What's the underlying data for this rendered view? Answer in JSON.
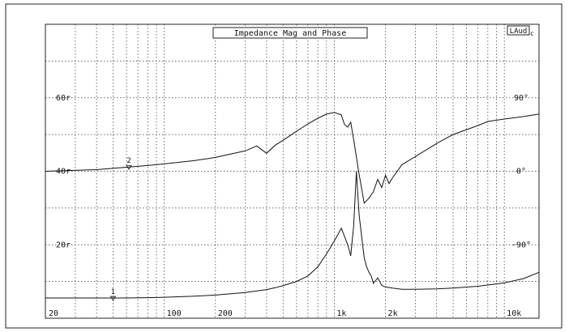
{
  "chart_data": {
    "type": "line",
    "title": "Impedance Mag and Phase",
    "brand": "LAud",
    "brand_suffix": "c",
    "xscale": "log",
    "xlim": [
      20,
      16000
    ],
    "x_tick_labels": [
      {
        "value": 20,
        "label": "20"
      },
      {
        "value": 100,
        "label": "100"
      },
      {
        "value": 200,
        "label": "200"
      },
      {
        "value": 1000,
        "label": "1k"
      },
      {
        "value": 2000,
        "label": "2k"
      },
      {
        "value": 10000,
        "label": "10k"
      }
    ],
    "y_left": {
      "unit": "r",
      "lim": [
        0,
        80
      ],
      "tick_labels": [
        {
          "value": 20,
          "label": "20r"
        },
        {
          "value": 40,
          "label": "40r"
        },
        {
          "value": 60,
          "label": "60r"
        }
      ]
    },
    "y_right": {
      "unit": "deg",
      "lim": [
        -180,
        180
      ],
      "tick_labels": [
        {
          "value": 90,
          "label": "90°"
        },
        {
          "value": 0,
          "label": "0°"
        },
        {
          "value": -90,
          "label": "-90°"
        }
      ]
    },
    "grid": true,
    "series": [
      {
        "id": "1",
        "axis": "left",
        "x": [
          20,
          40,
          60,
          80,
          100,
          150,
          200,
          300,
          400,
          450,
          500,
          600,
          700,
          800,
          900,
          1000,
          1100,
          1200,
          1250,
          1300,
          1350,
          1400,
          1500,
          1550,
          1600,
          1650,
          1700,
          1800,
          1900,
          2000,
          2200,
          2500,
          3000,
          4000,
          5000,
          7000,
          10000,
          13000,
          16000
        ],
        "y": [
          5.5,
          5.5,
          5.5,
          5.6,
          5.7,
          6.0,
          6.3,
          7.0,
          7.8,
          8.3,
          8.9,
          10.0,
          11.5,
          14.0,
          17.5,
          21.0,
          24.5,
          20.0,
          17.0,
          25.0,
          40.0,
          28.0,
          16.5,
          14.0,
          12.5,
          11.5,
          9.5,
          11.0,
          9.0,
          8.5,
          8.2,
          7.9,
          7.9,
          8.0,
          8.2,
          8.7,
          9.6,
          10.8,
          12.5
        ]
      },
      {
        "id": "2",
        "axis": "right",
        "x": [
          20,
          40,
          60,
          80,
          100,
          150,
          200,
          300,
          350,
          400,
          450,
          500,
          600,
          700,
          800,
          900,
          1000,
          1100,
          1150,
          1200,
          1250,
          1300,
          1400,
          1450,
          1500,
          1600,
          1700,
          1800,
          1900,
          2000,
          2100,
          2200,
          2500,
          3000,
          4000,
          5000,
          6000,
          7000,
          8000,
          10000,
          13000,
          16000
        ],
        "y": [
          0,
          2,
          5,
          7,
          9,
          13,
          17,
          25,
          31,
          22,
          32,
          38,
          49,
          58,
          65,
          70,
          72,
          69,
          57,
          54,
          60,
          39,
          -4,
          -22,
          -39,
          -33,
          -25,
          -10,
          -20,
          -5,
          -15,
          -8,
          8,
          18,
          34,
          45,
          51,
          56,
          61,
          64,
          67,
          70
        ]
      }
    ],
    "markers": [
      {
        "label": "1",
        "x": 50,
        "series": "1"
      },
      {
        "label": "2",
        "x": 62,
        "series": "2"
      }
    ]
  }
}
